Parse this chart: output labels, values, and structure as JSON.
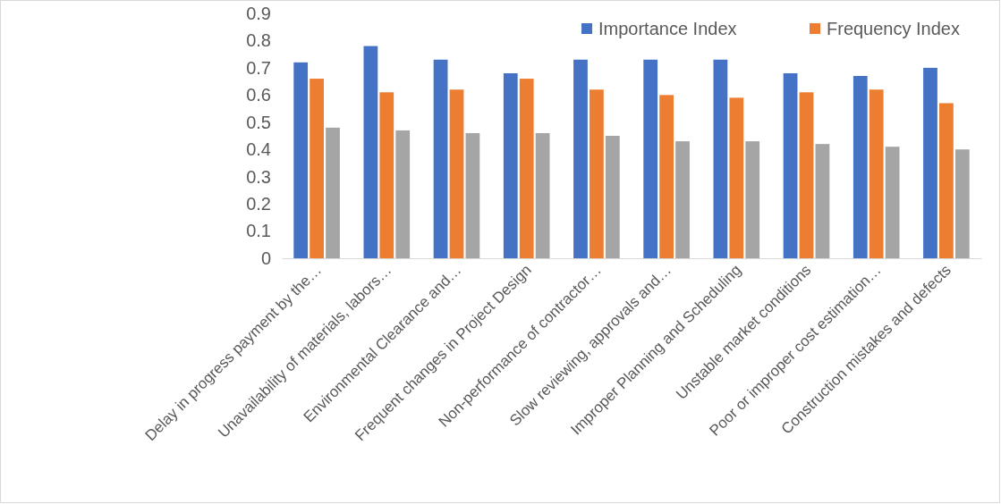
{
  "chart_data": {
    "type": "bar",
    "categories": [
      "Delay in progress payment by the…",
      "Unavailability of materials, labors…",
      "Environmental Clearance and…",
      "Frequent changes in Project Design",
      "Non-performance of contractor…",
      "Slow reviewing, approvals and…",
      "Improper Planning and Scheduling",
      "Unstable market conditions",
      "Poor or improper cost estimation…",
      "Construction mistakes and defects"
    ],
    "series": [
      {
        "name": "Importance Index",
        "color": "#4472c4",
        "values": [
          0.72,
          0.78,
          0.73,
          0.68,
          0.73,
          0.73,
          0.73,
          0.68,
          0.67,
          0.7
        ]
      },
      {
        "name": "Frequency Index",
        "color": "#ed7d31",
        "values": [
          0.66,
          0.61,
          0.62,
          0.66,
          0.62,
          0.6,
          0.59,
          0.61,
          0.62,
          0.57
        ]
      },
      {
        "color": "#a5a5a5",
        "values": [
          0.48,
          0.47,
          0.46,
          0.46,
          0.45,
          0.43,
          0.43,
          0.42,
          0.41,
          0.4
        ]
      }
    ],
    "ylim": [
      0,
      0.9
    ],
    "yticks": [
      0,
      0.1,
      0.2,
      0.3,
      0.4,
      0.5,
      0.6,
      0.7,
      0.8,
      0.9
    ],
    "legend": "top right"
  }
}
